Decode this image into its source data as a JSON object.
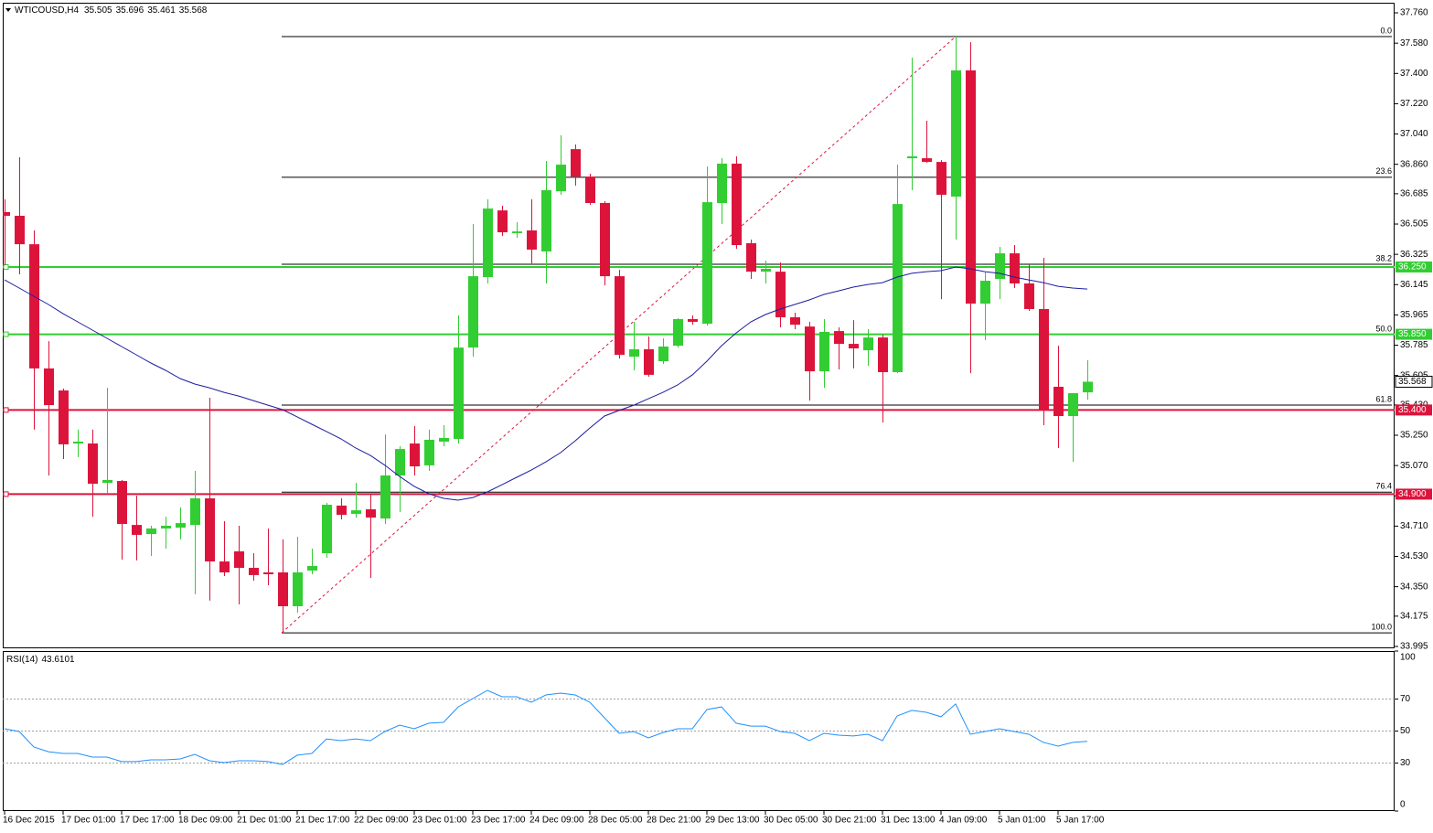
{
  "chart_data": [
    {
      "type": "candlestick",
      "title": "WTICOUSD,H4",
      "categories": [
        "16 Dec 2015",
        null,
        null,
        null,
        "17 Dec 01:00",
        null,
        null,
        null,
        "17 Dec 17:00",
        null,
        null,
        null,
        "18 Dec 09:00",
        null,
        null,
        null,
        "21 Dec 01:00",
        null,
        null,
        null,
        "21 Dec 17:00",
        null,
        null,
        null,
        "22 Dec 09:00",
        null,
        null,
        null,
        "23 Dec 01:00",
        null,
        null,
        null,
        "23 Dec 17:00",
        null,
        null,
        null,
        "24 Dec 09:00",
        null,
        null,
        null,
        "28 Dec 05:00",
        null,
        null,
        null,
        "28 Dec 21:00",
        null,
        null,
        null,
        "29 Dec 13:00",
        null,
        null,
        null,
        "30 Dec 05:00",
        null,
        null,
        null,
        "30 Dec 21:00",
        null,
        null,
        null,
        "31 Dec 13:00",
        null,
        null,
        null,
        "4 Jan 09:00",
        null,
        null,
        null,
        "5 Jan 01:00",
        null,
        null,
        null,
        "5 Jan 17:00",
        null,
        null
      ],
      "open": [
        36.576,
        36.554,
        36.385,
        35.647,
        35.516,
        35.201,
        35.201,
        34.967,
        34.978,
        34.717,
        34.663,
        34.696,
        34.701,
        34.717,
        34.875,
        34.5,
        34.56,
        34.462,
        34.435,
        34.435,
        34.234,
        34.446,
        34.549,
        34.832,
        34.783,
        34.81,
        34.755,
        35.011,
        35.201,
        35.071,
        35.212,
        35.228,
        35.771,
        36.19,
        36.586,
        36.451,
        36.467,
        36.342,
        36.7,
        36.95,
        36.787,
        36.63,
        36.195,
        35.717,
        35.761,
        35.69,
        35.782,
        35.94,
        35.913,
        36.63,
        36.864,
        36.391,
        36.222,
        36.222,
        35.951,
        35.896,
        35.63,
        35.869,
        35.793,
        35.755,
        35.831,
        35.625,
        36.896,
        36.896,
        36.874,
        36.668,
        37.418,
        36.032,
        36.179,
        36.331,
        36.152,
        36.0,
        35.538,
        35.364,
        35.505
      ],
      "high": [
        36.652,
        36.902,
        36.467,
        35.809,
        35.527,
        35.283,
        35.283,
        35.532,
        34.984,
        34.891,
        34.712,
        34.766,
        34.821,
        35.038,
        35.473,
        34.739,
        34.712,
        34.549,
        34.696,
        34.631,
        34.647,
        34.576,
        34.848,
        34.875,
        34.967,
        34.902,
        35.255,
        35.185,
        35.304,
        35.283,
        35.31,
        35.962,
        36.505,
        36.652,
        36.614,
        36.516,
        36.652,
        36.88,
        37.032,
        36.978,
        36.804,
        36.641,
        36.233,
        35.924,
        35.837,
        35.826,
        35.945,
        35.962,
        36.847,
        36.896,
        36.907,
        36.413,
        36.288,
        36.277,
        35.978,
        35.924,
        35.94,
        35.891,
        35.934,
        35.88,
        35.848,
        36.858,
        37.494,
        37.119,
        36.885,
        37.619,
        37.586,
        36.217,
        36.369,
        36.38,
        36.271,
        36.304,
        35.782,
        35.5,
        35.696
      ],
      "low": [
        36.26,
        36.206,
        35.283,
        35.011,
        35.109,
        35.12,
        34.766,
        34.902,
        34.511,
        34.506,
        34.533,
        34.576,
        34.631,
        34.305,
        34.267,
        34.413,
        34.245,
        34.386,
        34.359,
        34.076,
        34.196,
        34.424,
        34.522,
        34.75,
        34.761,
        34.402,
        34.723,
        34.793,
        35.011,
        35.038,
        35.185,
        35.201,
        35.717,
        36.152,
        36.434,
        36.423,
        36.271,
        36.152,
        36.679,
        36.733,
        36.619,
        36.141,
        35.706,
        35.636,
        35.598,
        35.674,
        35.771,
        35.907,
        35.902,
        36.505,
        36.358,
        36.179,
        36.152,
        35.891,
        35.88,
        35.456,
        35.532,
        35.641,
        35.647,
        35.663,
        35.326,
        35.619,
        36.706,
        36.869,
        36.059,
        36.413,
        35.619,
        35.815,
        36.059,
        36.125,
        35.989,
        35.31,
        35.174,
        35.092,
        35.461
      ],
      "close": [
        36.554,
        36.385,
        35.647,
        35.429,
        35.196,
        35.212,
        34.962,
        34.984,
        34.723,
        34.658,
        34.696,
        34.712,
        34.728,
        34.875,
        34.5,
        34.435,
        34.462,
        34.419,
        34.424,
        34.234,
        34.435,
        34.473,
        34.837,
        34.777,
        34.804,
        34.761,
        35.011,
        35.168,
        35.065,
        35.223,
        35.234,
        35.771,
        36.195,
        36.597,
        36.456,
        36.461,
        36.353,
        36.706,
        36.858,
        36.787,
        36.63,
        36.195,
        35.728,
        35.761,
        35.609,
        35.777,
        35.94,
        35.924,
        36.635,
        36.864,
        36.38,
        36.222,
        36.239,
        35.951,
        35.907,
        35.63,
        35.864,
        35.793,
        35.766,
        35.831,
        35.625,
        36.624,
        36.907,
        36.874,
        36.679,
        37.418,
        36.032,
        36.168,
        36.331,
        36.152,
        36.0,
        35.397,
        35.364,
        35.5,
        35.568
      ],
      "up_color": "#32cd32",
      "down_color": "#dc143c",
      "ma": {
        "color": "#1c1ca0",
        "values": [
          36.173,
          36.125,
          36.076,
          36.027,
          35.972,
          35.924,
          35.875,
          35.826,
          35.777,
          35.728,
          35.679,
          35.636,
          35.587,
          35.554,
          35.532,
          35.505,
          35.483,
          35.456,
          35.429,
          35.402,
          35.359,
          35.315,
          35.272,
          35.228,
          35.174,
          35.13,
          35.071,
          35.005,
          34.946,
          34.902,
          34.875,
          34.864,
          34.88,
          34.913,
          34.956,
          35.0,
          35.043,
          35.092,
          35.147,
          35.217,
          35.293,
          35.364,
          35.397,
          35.429,
          35.467,
          35.505,
          35.549,
          35.608,
          35.69,
          35.782,
          35.858,
          35.924,
          35.967,
          36.0,
          36.027,
          36.054,
          36.087,
          36.108,
          36.13,
          36.146,
          36.157,
          36.19,
          36.212,
          36.222,
          36.228,
          36.25,
          36.239,
          36.222,
          36.212,
          36.19,
          36.173,
          36.157,
          36.135,
          36.125,
          36.119
        ]
      },
      "ylim": [
        33.984,
        37.82
      ],
      "yticks": [
        {
          "value": 37.76,
          "label": "37.760"
        },
        {
          "value": 37.58,
          "label": "37.580"
        },
        {
          "value": 37.4,
          "label": "37.400"
        },
        {
          "value": 37.22,
          "label": "37.220"
        },
        {
          "value": 37.04,
          "label": "37.040"
        },
        {
          "value": 36.86,
          "label": "36.860"
        },
        {
          "value": 36.685,
          "label": "36.685"
        },
        {
          "value": 36.505,
          "label": "36.505"
        },
        {
          "value": 36.325,
          "label": "36.325"
        },
        {
          "value": 36.145,
          "label": "36.145"
        },
        {
          "value": 35.965,
          "label": "35.965"
        },
        {
          "value": 35.785,
          "label": "35.785"
        },
        {
          "value": 35.605,
          "label": "35.605"
        },
        {
          "value": 35.43,
          "label": "35.430"
        },
        {
          "value": 35.25,
          "label": "35.250"
        },
        {
          "value": 35.07,
          "label": "35.070"
        },
        {
          "value": 34.89,
          "label": "34.890"
        },
        {
          "value": 34.71,
          "label": "34.710"
        },
        {
          "value": 34.53,
          "label": "34.530"
        },
        {
          "value": 34.35,
          "label": "34.350"
        },
        {
          "value": 34.175,
          "label": "34.175"
        },
        {
          "value": 33.995,
          "label": "33.995"
        }
      ],
      "levels": [
        {
          "value": 36.25,
          "label": "36.250",
          "color": "#32cd32"
        },
        {
          "value": 35.85,
          "label": "35.850",
          "color": "#32cd32"
        },
        {
          "value": 35.4,
          "label": "35.400",
          "color": "#dc143c"
        },
        {
          "value": 34.9,
          "label": "34.900",
          "color": "#dc143c"
        }
      ],
      "fib": {
        "color": "#000000",
        "trend_color": "#dc143c",
        "levels": [
          {
            "label": "0.0",
            "price": 37.619
          },
          {
            "label": "23.6",
            "price": 36.783
          },
          {
            "label": "38.2",
            "price": 36.266
          },
          {
            "label": "50.0",
            "price": 35.848
          },
          {
            "label": "61.8",
            "price": 35.429
          },
          {
            "label": "76.4",
            "price": 34.912
          },
          {
            "label": "100.0",
            "price": 34.076
          }
        ]
      }
    },
    {
      "type": "line",
      "title": "RSI(14)",
      "color": "#1e90ff",
      "values": [
        51.4,
        49.7,
        40.0,
        37.1,
        36.0,
        36.0,
        33.7,
        33.7,
        30.9,
        30.9,
        32.0,
        32.0,
        32.6,
        35.4,
        31.4,
        30.3,
        31.4,
        31.4,
        30.9,
        29.1,
        34.9,
        36.0,
        45.1,
        44.0,
        45.1,
        44.0,
        49.7,
        53.7,
        51.4,
        54.9,
        55.4,
        65.1,
        70.3,
        75.4,
        71.4,
        71.4,
        68.0,
        72.6,
        73.7,
        72.6,
        68.0,
        58.3,
        48.6,
        49.7,
        45.7,
        49.1,
        51.4,
        51.4,
        63.4,
        65.1,
        54.9,
        53.1,
        53.1,
        49.7,
        48.6,
        44.0,
        48.6,
        47.4,
        46.9,
        48.0,
        44.0,
        59.4,
        62.9,
        61.7,
        58.9,
        66.9,
        48.0,
        49.7,
        51.4,
        49.7,
        48.0,
        42.9,
        40.6,
        42.9,
        43.6101
      ],
      "ylim": [
        0,
        100
      ],
      "yticks": [
        100,
        70,
        50,
        30,
        0
      ],
      "grid": true
    }
  ]
}
